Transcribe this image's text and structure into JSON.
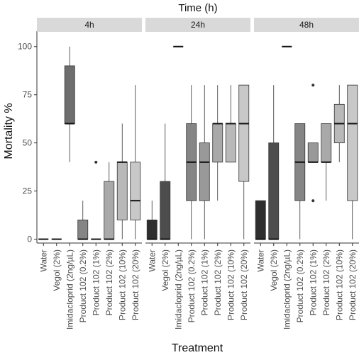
{
  "chart_data": {
    "type": "boxplot",
    "title": "Time (h)",
    "xlabel": "Treatment",
    "ylabel": "Mortality %",
    "ylim": [
      -2,
      108
    ],
    "yticks": [
      0,
      25,
      50,
      75,
      100
    ],
    "grid": false,
    "facets": [
      "4h",
      "24h",
      "48h"
    ],
    "categories": [
      "Water",
      "Vegol (2%)",
      "Imidacloprid (2ng/µL)",
      "Product 102 (0.2%)",
      "Product 102 (1%)",
      "Product 102 (2%)",
      "Product 102 (10%)",
      "Product 102 (20%)"
    ],
    "fill_colors": [
      "#2e2e2e",
      "#4d4d4d",
      "#6e6e6e",
      "#858585",
      "#999999",
      "#a9a9a9",
      "#b9b9b9",
      "#c8c8c8"
    ],
    "boxes": [
      [
        {
          "min": 0,
          "q1": 0,
          "median": 0,
          "q3": 0,
          "max": 0,
          "outliers": []
        },
        {
          "min": 0,
          "q1": 0,
          "median": 0,
          "q3": 0,
          "max": 0,
          "outliers": []
        },
        {
          "min": 40,
          "q1": 60,
          "median": 60,
          "q3": 90,
          "max": 100,
          "outliers": []
        },
        {
          "min": 0,
          "q1": 0,
          "median": 0,
          "q3": 10,
          "max": 20,
          "outliers": []
        },
        {
          "min": 0,
          "q1": 0,
          "median": 0,
          "q3": 0,
          "max": 0,
          "outliers": [
            40
          ]
        },
        {
          "min": 0,
          "q1": 0,
          "median": 0,
          "q3": 30,
          "max": 40,
          "outliers": []
        },
        {
          "min": 0,
          "q1": 10,
          "median": 40,
          "q3": 40,
          "max": 60,
          "outliers": []
        },
        {
          "min": 0,
          "q1": 10,
          "median": 20,
          "q3": 40,
          "max": 80,
          "outliers": []
        }
      ],
      [
        {
          "min": 0,
          "q1": 0,
          "median": 0,
          "q3": 10,
          "max": 20,
          "outliers": []
        },
        {
          "min": 0,
          "q1": 0,
          "median": 0,
          "q3": 30,
          "max": 60,
          "outliers": []
        },
        {
          "min": 100,
          "q1": 100,
          "median": 100,
          "q3": 100,
          "max": 100,
          "outliers": []
        },
        {
          "min": 0,
          "q1": 20,
          "median": 40,
          "q3": 60,
          "max": 80,
          "outliers": []
        },
        {
          "min": 0,
          "q1": 20,
          "median": 40,
          "q3": 50,
          "max": 80,
          "outliers": []
        },
        {
          "min": 20,
          "q1": 40,
          "median": 60,
          "q3": 60,
          "max": 80,
          "outliers": []
        },
        {
          "min": 40,
          "q1": 40,
          "median": 60,
          "q3": 60,
          "max": 80,
          "outliers": []
        },
        {
          "min": 0,
          "q1": 30,
          "median": 60,
          "q3": 80,
          "max": 80,
          "outliers": []
        }
      ],
      [
        {
          "min": 0,
          "q1": 0,
          "median": 0,
          "q3": 20,
          "max": 20,
          "outliers": []
        },
        {
          "min": 0,
          "q1": 0,
          "median": 0,
          "q3": 50,
          "max": 80,
          "outliers": []
        },
        {
          "min": 100,
          "q1": 100,
          "median": 100,
          "q3": 100,
          "max": 100,
          "outliers": []
        },
        {
          "min": 0,
          "q1": 20,
          "median": 40,
          "q3": 60,
          "max": 60,
          "outliers": []
        },
        {
          "min": 40,
          "q1": 40,
          "median": 40,
          "q3": 50,
          "max": 50,
          "outliers": [
            80,
            20
          ]
        },
        {
          "min": 20,
          "q1": 40,
          "median": 40,
          "q3": 60,
          "max": 60,
          "outliers": []
        },
        {
          "min": 40,
          "q1": 50,
          "median": 60,
          "q3": 70,
          "max": 80,
          "outliers": []
        },
        {
          "min": 0,
          "q1": 20,
          "median": 60,
          "q3": 80,
          "max": 80,
          "outliers": []
        }
      ]
    ]
  }
}
